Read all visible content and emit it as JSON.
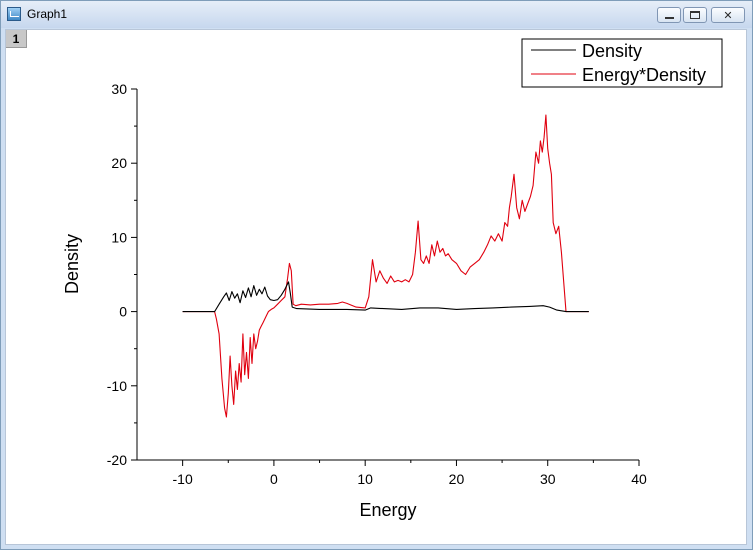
{
  "window": {
    "title": "Graph1",
    "layer_label": "1"
  },
  "chart_data": {
    "type": "line",
    "title": "",
    "xlabel": "Energy",
    "ylabel": "Density",
    "xlim": [
      -15,
      40
    ],
    "ylim": [
      -20,
      30
    ],
    "xticks": [
      -10,
      0,
      10,
      20,
      30,
      40
    ],
    "yticks": [
      -20,
      -10,
      0,
      10,
      20,
      30
    ],
    "legend_position": "top-right",
    "series": [
      {
        "name": "Density",
        "color": "#000000",
        "x": [
          -10,
          -6.5,
          -6.0,
          -5.5,
          -5.2,
          -4.9,
          -4.6,
          -4.3,
          -4.0,
          -3.7,
          -3.4,
          -3.1,
          -2.8,
          -2.5,
          -2.2,
          -1.9,
          -1.6,
          -1.3,
          -1.0,
          -0.7,
          -0.4,
          0,
          0.4,
          0.8,
          1.2,
          1.6,
          1.8,
          2.0,
          2.5,
          5,
          8,
          10,
          10.6,
          12,
          14,
          16,
          18,
          20,
          22,
          24,
          26,
          28,
          29.5,
          30.2,
          31,
          32,
          34.5
        ],
        "y": [
          0,
          0,
          1.0,
          2.0,
          2.5,
          1.5,
          2.7,
          1.8,
          2.4,
          1.2,
          2.8,
          1.9,
          3.2,
          2.0,
          3.5,
          2.2,
          3.0,
          2.4,
          3.3,
          2.1,
          1.6,
          1.5,
          1.6,
          2.2,
          3.0,
          4.0,
          2.5,
          0.6,
          0.4,
          0.3,
          0.3,
          0.2,
          0.5,
          0.4,
          0.3,
          0.5,
          0.5,
          0.3,
          0.4,
          0.5,
          0.6,
          0.7,
          0.8,
          0.6,
          0.2,
          0,
          0
        ]
      },
      {
        "name": "Energy*Density",
        "color": "#e0000f",
        "x": [
          -10,
          -6.5,
          -6.3,
          -6.0,
          -5.7,
          -5.4,
          -5.2,
          -5.0,
          -4.8,
          -4.6,
          -4.4,
          -4.2,
          -4.0,
          -3.8,
          -3.6,
          -3.4,
          -3.2,
          -3.0,
          -2.8,
          -2.6,
          -2.4,
          -2.2,
          -2.0,
          -1.8,
          -1.6,
          -1.4,
          -1.2,
          -1.0,
          -0.8,
          -0.6,
          -0.3,
          0,
          0.4,
          0.8,
          1.2,
          1.5,
          1.7,
          1.9,
          2.1,
          2.4,
          3,
          4,
          5,
          6,
          7,
          7.5,
          8,
          9,
          10,
          10.4,
          10.8,
          11.2,
          11.6,
          12,
          12.4,
          12.8,
          13.2,
          13.6,
          14,
          14.4,
          14.8,
          15.2,
          15.5,
          15.8,
          16.1,
          16.4,
          16.7,
          17,
          17.3,
          17.6,
          17.9,
          18.2,
          18.5,
          18.8,
          19.1,
          19.5,
          20,
          20.5,
          21,
          21.5,
          22,
          22.5,
          23,
          23.4,
          23.8,
          24.2,
          24.6,
          25,
          25.3,
          25.6,
          25.8,
          26.0,
          26.3,
          26.6,
          26.9,
          27.2,
          27.5,
          27.8,
          28.1,
          28.4,
          28.7,
          29.0,
          29.2,
          29.4,
          29.6,
          29.8,
          30.0,
          30.2,
          30.4,
          30.6,
          30.9,
          31.2,
          31.5,
          32.0,
          34.5
        ],
        "y": [
          0,
          0,
          -1.0,
          -3.0,
          -9.0,
          -13.0,
          -14.2,
          -11.0,
          -6.0,
          -10.0,
          -12.5,
          -8.0,
          -10.5,
          -7.0,
          -9.5,
          -3.0,
          -8.5,
          -5.5,
          -9.0,
          -3.5,
          -7.0,
          -3.0,
          -5.0,
          -4.0,
          -2.5,
          -2.0,
          -1.5,
          -1.0,
          -0.5,
          0,
          0.3,
          0.5,
          1.0,
          1.5,
          2.0,
          4.5,
          6.5,
          5.5,
          1.0,
          0.8,
          1.0,
          0.9,
          1.0,
          1.0,
          1.1,
          1.3,
          1.1,
          0.6,
          0.5,
          2.0,
          7.0,
          4.0,
          5.5,
          4.5,
          3.8,
          4.8,
          4.0,
          4.2,
          4.0,
          4.3,
          4.0,
          5.0,
          8.0,
          12.2,
          7.0,
          6.5,
          7.5,
          6.5,
          9.0,
          7.5,
          9.5,
          8.0,
          8.5,
          7.5,
          7.8,
          7.0,
          6.5,
          5.5,
          5.0,
          6.0,
          6.5,
          7.0,
          8.0,
          9.0,
          10.2,
          9.5,
          10.5,
          9.5,
          12.0,
          11.5,
          14.0,
          15.5,
          18.5,
          14.0,
          12.5,
          15.0,
          13.5,
          14.5,
          15.5,
          17.0,
          21.5,
          20.0,
          23.0,
          21.5,
          23.5,
          26.5,
          22.0,
          20.0,
          18.5,
          12.0,
          10.5,
          11.5,
          8.0,
          0,
          0
        ]
      }
    ]
  }
}
